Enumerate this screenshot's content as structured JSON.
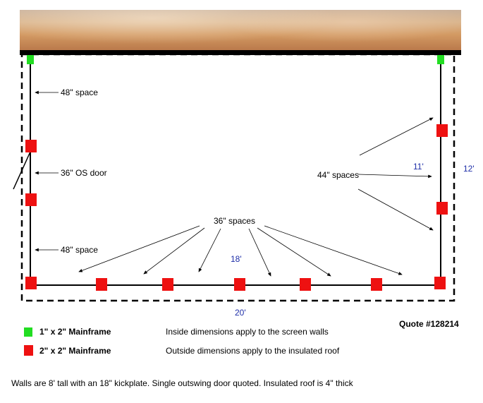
{
  "labels": {
    "space_top": "48\" space",
    "door": "36\" OS door",
    "space_bottom": "48\" space",
    "spaces_44": "44\" spaces",
    "spaces_36": "36\" spaces"
  },
  "dimensions": {
    "inside_depth": "11'",
    "outside_depth": "12'",
    "inside_width": "18'",
    "outside_width": "20'"
  },
  "legend": [
    {
      "label": "1\" x 2\" Mainframe",
      "color": "#22dd22",
      "description": "Inside dimensions apply to the screen walls"
    },
    {
      "label": "2\" x 2\" Mainframe",
      "color": "#ee1111",
      "description": "Outside dimensions apply to the insulated roof"
    }
  ],
  "quote": "Quote #128214",
  "footer_note": "Walls are 8' tall with an 18\" kickplate. Single outswing door quoted. Insulated roof is 4\" thick",
  "colors": {
    "green_post": "#22dd22",
    "red_post": "#ee1111",
    "dimension_text": "#1f2fa8"
  }
}
